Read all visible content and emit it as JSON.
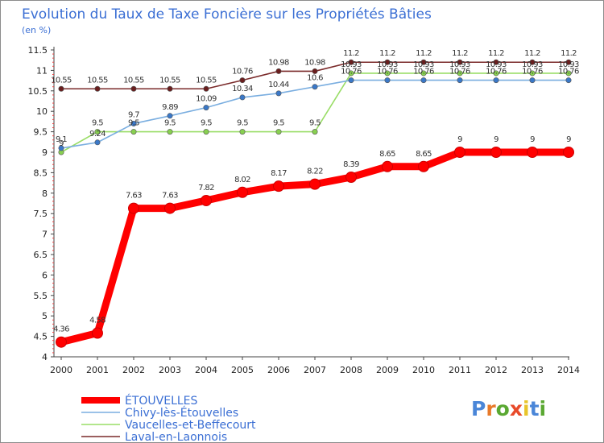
{
  "chart_data": {
    "type": "line",
    "title": "Evolution du Taux de Taxe Foncière sur les Propriétés Bâties",
    "unit_label": "(en %)",
    "xlabel": "",
    "ylabel": "",
    "x": [
      "2000",
      "2001",
      "2002",
      "2003",
      "2004",
      "2005",
      "2006",
      "2007",
      "2008",
      "2009",
      "2010",
      "2011",
      "2012",
      "2013",
      "2014"
    ],
    "ylim": [
      4,
      11.5
    ],
    "yticks": [
      "4",
      "4.5",
      "5",
      "5.5",
      "6",
      "6.5",
      "7",
      "7.5",
      "8",
      "8.5",
      "9",
      "9.5",
      "10",
      "10.5",
      "11",
      "11.5"
    ],
    "grid": false,
    "legend_position": "bottom-left",
    "series": [
      {
        "name": "ÉTOUVELLES",
        "color": "#ff0000",
        "values": [
          4.36,
          4.58,
          7.63,
          7.63,
          7.82,
          8.02,
          8.17,
          8.22,
          8.39,
          8.65,
          8.65,
          9,
          9,
          9,
          9
        ],
        "labels": [
          "4.36",
          "4.58",
          "7.63",
          "7.63",
          "7.82",
          "8.02",
          "8.17",
          "8.22",
          "8.39",
          "8.65",
          "8.65",
          "9",
          "9",
          "9",
          "9"
        ]
      },
      {
        "name": "Chivy-lès-Étouvelles",
        "color": "#7aaee0",
        "values": [
          9.1,
          9.24,
          9.7,
          9.89,
          10.09,
          10.34,
          10.44,
          10.6,
          10.76,
          10.76,
          10.76,
          10.76,
          10.76,
          10.76,
          10.76
        ],
        "labels": [
          "9.1",
          "9.24",
          "9.7",
          "9.89",
          "10.09",
          "10.34",
          "10.44",
          "10.6",
          "10.76",
          "10.76",
          "10.76",
          "10.76",
          "10.76",
          "10.76",
          "10.76"
        ]
      },
      {
        "name": "Vaucelles-et-Beffecourt",
        "color": "#99dd66",
        "values": [
          9,
          9.5,
          9.5,
          9.5,
          9.5,
          9.5,
          9.5,
          9.5,
          10.93,
          10.93,
          10.93,
          10.93,
          10.93,
          10.93,
          10.93
        ],
        "labels": [
          "9",
          "9.5",
          "9.5",
          "9.5",
          "9.5",
          "9.5",
          "9.5",
          "9.5",
          "10.93",
          "10.93",
          "10.93",
          "10.93",
          "10.93",
          "10.93",
          "10.93"
        ]
      },
      {
        "name": "Laval-en-Laonnois",
        "color": "#7a2a2a",
        "values": [
          10.55,
          10.55,
          10.55,
          10.55,
          10.55,
          10.76,
          10.98,
          10.98,
          11.2,
          11.2,
          11.2,
          11.2,
          11.2,
          11.2,
          11.2
        ],
        "labels": [
          "10.55",
          "10.55",
          "10.55",
          "10.55",
          "10.55",
          "10.76",
          "10.98",
          "10.98",
          "11.2",
          "11.2",
          "11.2",
          "11.2",
          "11.2",
          "11.2",
          "11.2"
        ]
      }
    ]
  },
  "logo": {
    "text": "Proxiti",
    "letter_colors": [
      "#4a86d8",
      "#e87a2a",
      "#5aa832",
      "#e84a2a",
      "#e8c42a",
      "#4a86d8",
      "#5aa832"
    ]
  }
}
